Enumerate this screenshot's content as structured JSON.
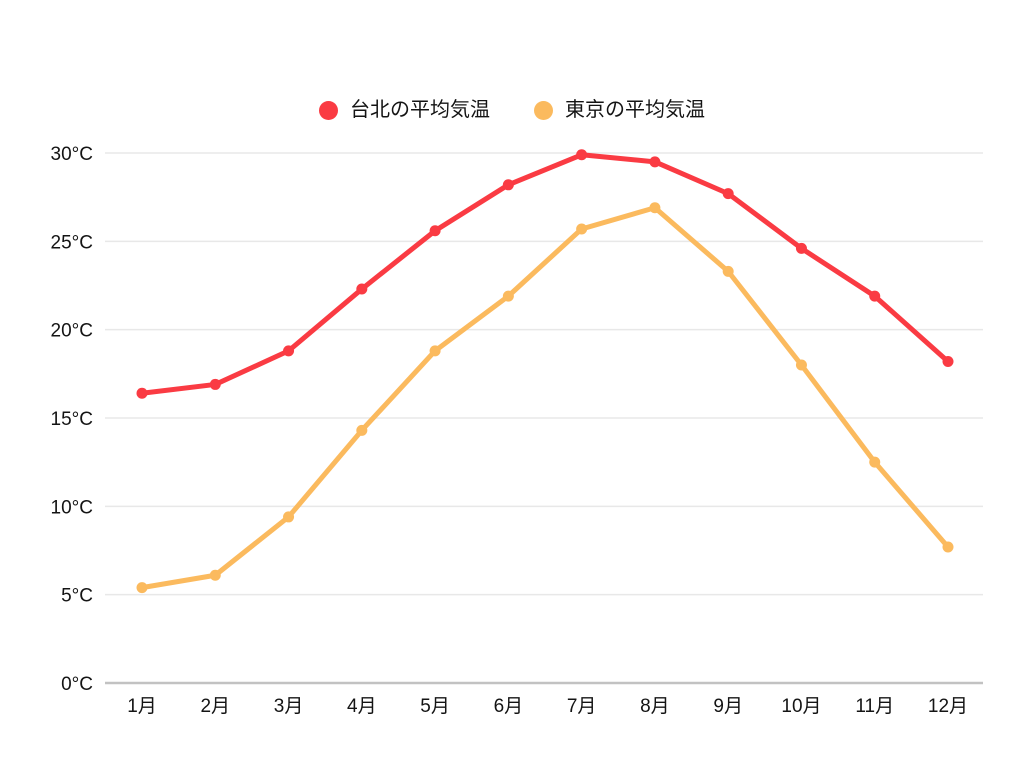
{
  "chart_data": {
    "type": "line",
    "title": "",
    "categories": [
      "1月",
      "2月",
      "3月",
      "4月",
      "5月",
      "6月",
      "7月",
      "8月",
      "9月",
      "10月",
      "11月",
      "12月"
    ],
    "series": [
      {
        "name": "台北の平均気温",
        "color": "#fa3b43",
        "values": [
          16.4,
          16.9,
          18.8,
          22.3,
          25.6,
          28.2,
          29.9,
          29.5,
          27.7,
          24.6,
          21.9,
          18.2
        ]
      },
      {
        "name": "東京の平均気温",
        "color": "#fbba5e",
        "values": [
          5.4,
          6.1,
          9.4,
          14.3,
          18.8,
          21.9,
          25.7,
          26.9,
          23.3,
          18.0,
          12.5,
          7.7
        ]
      }
    ],
    "xlabel": "",
    "ylabel": "",
    "y_unit": "°C",
    "ylim": [
      0,
      30
    ],
    "ytick_step": 5,
    "ytick_labels": [
      "0°C",
      "5°C",
      "10°C",
      "15°C",
      "20°C",
      "25°C",
      "30°C"
    ],
    "grid": true,
    "legend_position": "top"
  },
  "colors": {
    "background": "#ffffff",
    "grid_line": "#e8e8e8",
    "axis_line": "#c2c2c2",
    "text": "#141414"
  }
}
